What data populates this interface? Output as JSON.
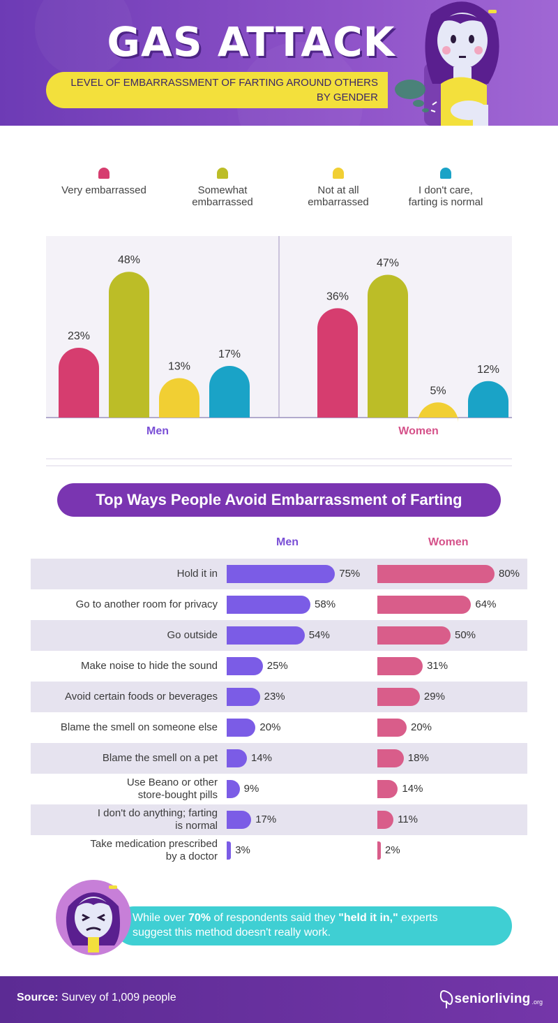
{
  "header": {
    "title": "GAS ATTACK",
    "subtitle_line1": "LEVEL OF EMBARRASSMENT OF FARTING AROUND OTHERS",
    "subtitle_line2": "BY GENDER"
  },
  "colors": {
    "very": "#d63d6f",
    "somewhat": "#bcbd27",
    "not_at_all": "#f1cf33",
    "dont_care": "#1aa3c7",
    "men_bar": "#7b5ce6",
    "women_bar": "#d95d8a",
    "men_label": "#7a4fd6",
    "women_label": "#d5528a"
  },
  "legend": [
    {
      "label_line1": "Very embarrassed",
      "label_line2": "",
      "color": "#d63d6f"
    },
    {
      "label_line1": "Somewhat",
      "label_line2": "embarrassed",
      "color": "#bcbd27"
    },
    {
      "label_line1": "Not at all",
      "label_line2": "embarrassed",
      "color": "#f1cf33"
    },
    {
      "label_line1": "I don't care,",
      "label_line2": "farting is normal",
      "color": "#1aa3c7"
    }
  ],
  "chart_data": [
    {
      "type": "bar",
      "categories": [
        "Men",
        "Women"
      ],
      "series": [
        {
          "name": "Very embarrassed",
          "values": [
            23,
            36
          ],
          "labels": [
            "23%",
            "36%"
          ]
        },
        {
          "name": "Somewhat embarrassed",
          "values": [
            48,
            47
          ],
          "labels": [
            "48%",
            "47%"
          ]
        },
        {
          "name": "Not at all embarrassed",
          "values": [
            13,
            5
          ],
          "labels": [
            "13%",
            "5%"
          ]
        },
        {
          "name": "I don't care, farting is normal",
          "values": [
            17,
            12
          ],
          "labels": [
            "17%",
            "12%"
          ]
        }
      ],
      "ylim": [
        0,
        50
      ],
      "legend_position": "top"
    },
    {
      "type": "bar",
      "title": "Top Ways People Avoid Embarrassment of Farting",
      "orientation": "horizontal",
      "series_headers": [
        "Men",
        "Women"
      ],
      "categories": [
        [
          "Hold it in"
        ],
        [
          "Go to another room for privacy"
        ],
        [
          "Go outside"
        ],
        [
          "Make noise to hide the sound"
        ],
        [
          "Avoid certain foods or beverages"
        ],
        [
          "Blame the smell on someone else"
        ],
        [
          "Blame the smell on a pet"
        ],
        [
          "Use Beano or other",
          "store-bought pills"
        ],
        [
          "I don't do anything; farting",
          "is normal"
        ],
        [
          "Take medication prescribed",
          "by a doctor"
        ]
      ],
      "series": [
        {
          "name": "Men",
          "values": [
            75,
            58,
            54,
            25,
            23,
            20,
            14,
            9,
            17,
            3
          ],
          "labels": [
            "75%",
            "58%",
            "54%",
            "25%",
            "23%",
            "20%",
            "14%",
            "9%",
            "17%",
            "3%"
          ]
        },
        {
          "name": "Women",
          "values": [
            80,
            64,
            50,
            31,
            29,
            20,
            18,
            14,
            11,
            2
          ],
          "labels": [
            "80%",
            "64%",
            "50%",
            "31%",
            "29%",
            "20%",
            "18%",
            "14%",
            "11%",
            "2%"
          ]
        }
      ],
      "xlim": [
        0,
        80
      ]
    }
  ],
  "note": {
    "part1": "While over ",
    "bold1": "70%",
    "part2": " of respondents said they ",
    "bold2": "\"held it in,\"",
    "part3": " experts",
    "line2": "suggest this method doesn't really work."
  },
  "footer": {
    "source_label": "Source:",
    "source_text": " Survey of 1,009 people",
    "logo_main": "seniorliving",
    "logo_org": ".org"
  }
}
